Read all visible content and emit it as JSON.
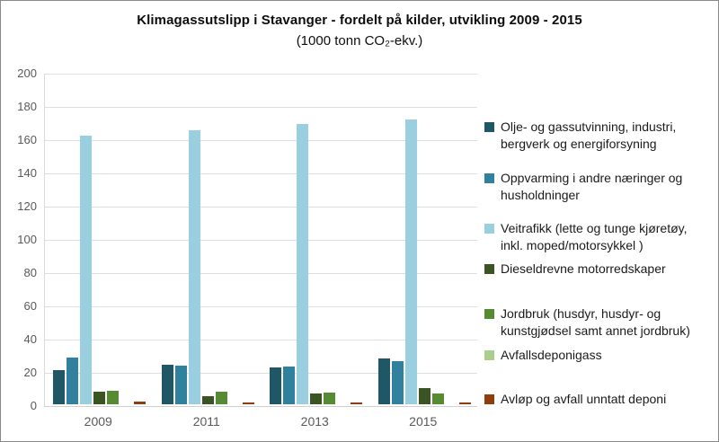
{
  "chart_data": {
    "type": "bar",
    "title": "Klimagassutslipp i Stavanger - fordelt på kilder, utvikling 2009 - 2015",
    "subtitle": "(1000 tonn CO₂-ekv.)",
    "categories": [
      "2009",
      "2011",
      "2013",
      "2015"
    ],
    "yticks": [
      0,
      20,
      40,
      60,
      80,
      100,
      120,
      140,
      160,
      180,
      200
    ],
    "ylim": [
      0,
      200
    ],
    "grid": true,
    "legend_position": "right",
    "series": [
      {
        "name": "Olje- og gassutvinning, industri, bergverk og energiforsyning",
        "legend_lines": [
          "Olje- og gassutvinning, industri,",
          "bergverk og energiforsyning"
        ],
        "color": "#1f5767",
        "values": [
          20.5,
          24,
          22,
          27.5
        ]
      },
      {
        "name": "Oppvarming i andre næringer og husholdninger",
        "legend_lines": [
          "Oppvarming i andre næringer og",
          "husholdninger"
        ],
        "color": "#2f819e",
        "values": [
          28,
          23.5,
          22.5,
          26
        ]
      },
      {
        "name": "Veitrafikk (lette og tunge kjøretøy, inkl. moped/motorsykkel )",
        "legend_lines": [
          "Veitrafikk (lette og tunge kjøretøy,",
          "inkl. moped/motorsykkel )"
        ],
        "color": "#9acfe0",
        "values": [
          161.5,
          165,
          168.5,
          171.5
        ]
      },
      {
        "name": "Dieseldrevne motorredskaper",
        "legend_lines": [
          "Dieseldrevne motorredskaper"
        ],
        "color": "#3a5423",
        "values": [
          7.5,
          5,
          6.5,
          9.5
        ]
      },
      {
        "name": "Jordbruk (husdyr, husdyr- og kunstgjødsel samt annet jordbruk)",
        "legend_lines": [
          "Jordbruk (husdyr, husdyr- og",
          "kunstgjødsel samt annet jordbruk)"
        ],
        "color": "#568a33",
        "values": [
          8,
          7.5,
          7,
          6.5
        ]
      },
      {
        "name": "Avfallsdeponigass",
        "legend_lines": [
          "Avfallsdeponigass"
        ],
        "color": "#a9ce8e",
        "values": [
          0,
          0,
          0,
          0
        ]
      },
      {
        "name": "Avløp og avfall unntatt deponi",
        "legend_lines": [
          "Avløp og avfall unntatt deponi"
        ],
        "color": "#8f3d10",
        "values": [
          1.4,
          1.2,
          1.3,
          1.3
        ]
      }
    ]
  }
}
